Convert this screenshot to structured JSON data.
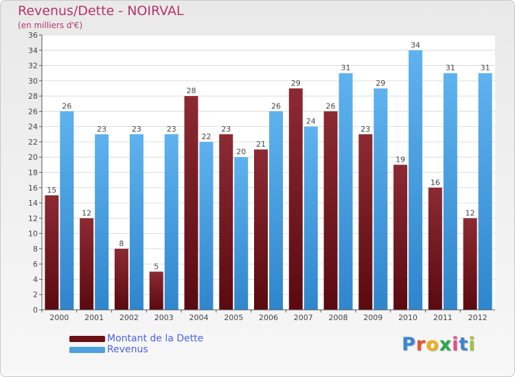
{
  "header": {
    "title": "Revenus/Dette - NOIRVAL",
    "subtitle": "(en milliers d'€)"
  },
  "colors": {
    "dette": "#7a1a22",
    "revenus": "#4da1e0",
    "title": "#b5346b",
    "legend_text": "#4a63e8"
  },
  "legend": {
    "items": [
      {
        "label": "Montant de la Dette",
        "color": "#6b0f15"
      },
      {
        "label": "Revenus",
        "color": "#4da1e0"
      }
    ]
  },
  "logo": {
    "letters": [
      "P",
      "r",
      "o",
      "x",
      "i",
      "t",
      "i"
    ],
    "colors": [
      "#3a86d8",
      "#e8542a",
      "#f2b01e",
      "#2aa84a",
      "#e84a8a",
      "#3a86d8",
      "#a0c63a"
    ]
  },
  "chart_data": {
    "type": "bar",
    "title": "Revenus/Dette - NOIRVAL",
    "subtitle": "(en milliers d'€)",
    "categories": [
      "2000",
      "2001",
      "2002",
      "2003",
      "2004",
      "2005",
      "2006",
      "2007",
      "2008",
      "2009",
      "2010",
      "2011",
      "2012"
    ],
    "series": [
      {
        "name": "Montant de la Dette",
        "values": [
          15,
          12,
          8,
          5,
          28,
          23,
          21,
          29,
          26,
          23,
          19,
          16,
          12
        ]
      },
      {
        "name": "Revenus",
        "values": [
          26,
          23,
          23,
          23,
          22,
          20,
          26,
          24,
          31,
          29,
          34,
          31,
          31
        ]
      }
    ],
    "ylim": [
      0,
      36
    ],
    "yticks": [
      0,
      2,
      4,
      6,
      8,
      10,
      12,
      14,
      16,
      18,
      20,
      22,
      24,
      26,
      28,
      30,
      32,
      34,
      36
    ],
    "grid": true,
    "legend_position": "bottom-left"
  }
}
